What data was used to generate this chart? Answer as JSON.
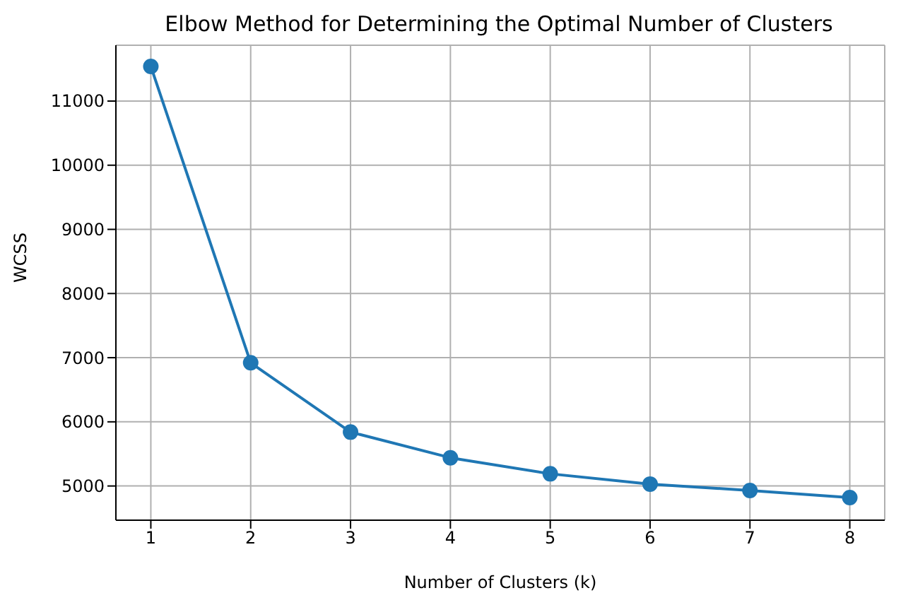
{
  "chart_data": {
    "type": "line",
    "title": "Elbow Method for Determining the Optimal Number of Clusters",
    "xlabel": "Number of Clusters (k)",
    "ylabel": "WCSS",
    "x": [
      1,
      2,
      3,
      4,
      5,
      6,
      7,
      8
    ],
    "series": [
      {
        "color": "#1f77b4",
        "values": [
          11540,
          6920,
          5840,
          5440,
          5190,
          5030,
          4930,
          4820
        ]
      }
    ],
    "xlim": [
      0.65,
      8.35
    ],
    "xticks": [
      1,
      2,
      3,
      4,
      5,
      6,
      7,
      8
    ],
    "ylim": [
      4467,
      11870
    ],
    "yticks": [
      5000,
      6000,
      7000,
      8000,
      9000,
      10000,
      11000
    ],
    "grid": true,
    "marker": "circle",
    "line_style": "solid",
    "legend": false
  }
}
